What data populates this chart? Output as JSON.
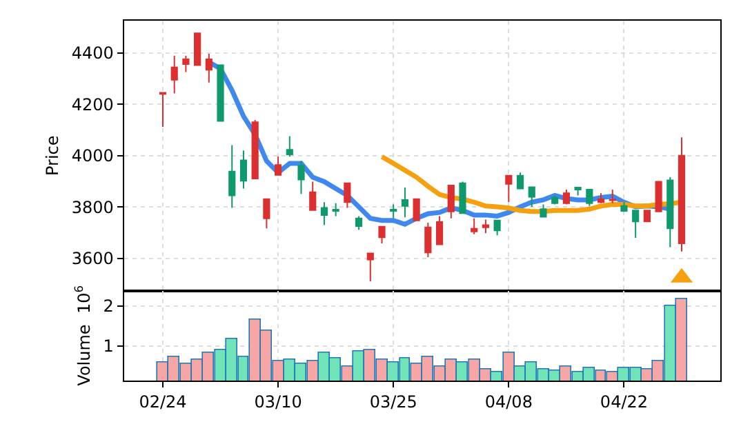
{
  "chart_data": [
    {
      "type": "candlestick",
      "ylabel": "Price",
      "tick_labels": "y",
      "grid": true,
      "categories": [
        null,
        null,
        null,
        null,
        null,
        null,
        null,
        null,
        null,
        null,
        null,
        null,
        null,
        null,
        null,
        null,
        null,
        null,
        null,
        null,
        null,
        null,
        null,
        null,
        null,
        null,
        null,
        null,
        null,
        null,
        null,
        null,
        null,
        null,
        null,
        null,
        null,
        null,
        null,
        null,
        null,
        null,
        null,
        null,
        null,
        null
      ],
      "ohlc": [
        [
          4245,
          4245,
          4112,
          4240
        ],
        [
          4343,
          4388,
          4242,
          4295
        ],
        [
          4375,
          4388,
          4325,
          4356
        ],
        [
          4476,
          4476,
          4352,
          4352
        ],
        [
          4375,
          4396,
          4284,
          4334
        ],
        [
          4135,
          4355,
          4135,
          4352
        ],
        [
          3845,
          4041,
          3797,
          3938
        ],
        [
          3902,
          4020,
          3872,
          3982
        ],
        [
          4130,
          4139,
          3911,
          3911
        ],
        [
          3831,
          3831,
          3717,
          3756
        ],
        [
          3964,
          3996,
          3925,
          3925
        ],
        [
          4005,
          4076,
          3996,
          4023
        ],
        [
          3907,
          3979,
          3851,
          3961
        ],
        [
          3858,
          3899,
          3788,
          3788
        ],
        [
          3769,
          3819,
          3730,
          3797
        ],
        [
          3785,
          3815,
          3765,
          3790
        ],
        [
          3893,
          3893,
          3797,
          3819
        ],
        [
          3726,
          3765,
          3712,
          3756
        ],
        [
          3620,
          3620,
          3511,
          3596
        ],
        [
          3724,
          3724,
          3659,
          3682
        ],
        [
          3785,
          3810,
          3756,
          3790
        ],
        [
          3804,
          3876,
          3760,
          3828
        ],
        [
          3831,
          3831,
          3748,
          3748
        ],
        [
          3721,
          3739,
          3605,
          3623
        ],
        [
          3742,
          3765,
          3655,
          3655
        ],
        [
          3884,
          3884,
          3756,
          3783
        ],
        [
          3776,
          3899,
          3776,
          3893
        ],
        [
          3716,
          3756,
          3694,
          3705
        ],
        [
          3730,
          3751,
          3698,
          3721
        ],
        [
          3709,
          3748,
          3690,
          3748
        ],
        [
          3922,
          3922,
          3819,
          3890
        ],
        [
          3872,
          3934,
          3872,
          3922
        ],
        [
          3840,
          3877,
          3801,
          3877
        ],
        [
          3762,
          3810,
          3762,
          3792
        ],
        [
          3815,
          3845,
          3810,
          3837
        ],
        [
          3854,
          3868,
          3810,
          3815
        ],
        [
          3868,
          3876,
          3845,
          3876
        ],
        [
          3815,
          3868,
          3804,
          3868
        ],
        [
          3831,
          3854,
          3815,
          3819
        ],
        [
          3829,
          3868,
          3815,
          3826
        ],
        [
          3785,
          3819,
          3782,
          3804
        ],
        [
          3744,
          3787,
          3680,
          3787
        ],
        [
          3787,
          3787,
          3744,
          3744
        ],
        [
          3899,
          3899,
          3783,
          3783
        ],
        [
          3717,
          3917,
          3644,
          3904
        ],
        [
          4000,
          4071,
          3627,
          3659
        ]
      ],
      "colors": [
        "#dc2f2f",
        "#dc2f2f",
        "#dc2f2f",
        "#dc2f2f",
        "#dc2f2f",
        "#0f9a6e",
        "#0f9a6e",
        "#0f9a6e",
        "#dc2f2f",
        "#dc2f2f",
        "#dc2f2f",
        "#0f9a6e",
        "#0f9a6e",
        "#dc2f2f",
        "#0f9a6e",
        "#0f9a6e",
        "#dc2f2f",
        "#0f9a6e",
        "#dc2f2f",
        "#dc2f2f",
        "#0f9a6e",
        "#0f9a6e",
        "#dc2f2f",
        "#dc2f2f",
        "#dc2f2f",
        "#dc2f2f",
        "#0f9a6e",
        "#dc2f2f",
        "#dc2f2f",
        "#0f9a6e",
        "#dc2f2f",
        "#0f9a6e",
        "#0f9a6e",
        "#0f9a6e",
        "#0f9a6e",
        "#dc2f2f",
        "#0f9a6e",
        "#0f9a6e",
        "#dc2f2f",
        "#dc2f2f",
        "#0f9a6e",
        "#0f9a6e",
        "#dc2f2f",
        "#dc2f2f",
        "#0f9a6e",
        "#dc2f2f"
      ],
      "ylim": [
        3475,
        4525
      ],
      "yticks": [
        3600,
        3800,
        4000,
        4200,
        4400
      ],
      "series": [
        {
          "type": "line",
          "color": "#3f88f0",
          "values": [
            null,
            null,
            null,
            null,
            4364,
            4338,
            4254,
            4153,
            4082,
            3979,
            3934,
            3970,
            3970,
            3916,
            3899,
            3872,
            3845,
            3801,
            3756,
            3748,
            3748,
            3733,
            3756,
            3774,
            3779,
            3797,
            3787,
            3769,
            3769,
            3765,
            3779,
            3801,
            3819,
            3828,
            3845,
            3833,
            3828,
            3828,
            3837,
            3842,
            3819,
            3801,
            3804,
            3801,
            3792,
            null
          ]
        },
        {
          "type": "line",
          "color": "#f5a00e",
          "values": [
            null,
            null,
            null,
            null,
            null,
            null,
            null,
            null,
            null,
            null,
            null,
            null,
            null,
            null,
            null,
            null,
            null,
            null,
            null,
            3996,
            3970,
            3943,
            3916,
            3881,
            3849,
            3837,
            3831,
            3819,
            3804,
            3801,
            3796,
            3787,
            3783,
            3783,
            3787,
            3787,
            3787,
            3792,
            3804,
            3810,
            3810,
            3804,
            3804,
            3810,
            3813,
            3819
          ]
        },
        {
          "type": "scatter",
          "marker": "triangle",
          "color": "#f5a00e",
          "values": [
            null,
            null,
            null,
            null,
            null,
            null,
            null,
            null,
            null,
            null,
            null,
            null,
            null,
            null,
            null,
            null,
            null,
            null,
            null,
            null,
            null,
            null,
            null,
            null,
            null,
            null,
            null,
            null,
            null,
            null,
            null,
            null,
            null,
            null,
            null,
            null,
            null,
            null,
            null,
            null,
            null,
            null,
            null,
            null,
            null,
            3525
          ]
        }
      ]
    },
    {
      "type": "bar",
      "ylabel": "Volume  10$^{6}$",
      "grid": true,
      "categories": [
        "02/24",
        null,
        null,
        null,
        null,
        null,
        null,
        null,
        null,
        null,
        "03/10",
        null,
        null,
        null,
        null,
        null,
        null,
        null,
        null,
        null,
        "03/25",
        null,
        null,
        null,
        null,
        null,
        null,
        null,
        null,
        null,
        "04/08",
        null,
        null,
        null,
        null,
        null,
        null,
        null,
        null,
        null,
        "04/22",
        null,
        null,
        null,
        null,
        null
      ],
      "values": [
        0.6,
        0.74,
        0.56,
        0.65,
        0.83,
        0.9,
        1.18,
        0.74,
        1.67,
        1.39,
        0.62,
        0.65,
        0.56,
        0.63,
        0.83,
        0.69,
        0.49,
        0.87,
        0.9,
        0.65,
        0.6,
        0.7,
        0.56,
        0.74,
        0.49,
        0.67,
        0.6,
        0.67,
        0.43,
        0.36,
        0.85,
        0.49,
        0.6,
        0.43,
        0.39,
        0.49,
        0.36,
        0.46,
        0.39,
        0.36,
        0.46,
        0.46,
        0.43,
        0.63,
        1.99,
        2.17
      ],
      "colors": [
        "#f7a6a6",
        "#f7a6a6",
        "#f7a6a6",
        "#f7a6a6",
        "#f7a6a6",
        "#70e4b8",
        "#70e4b8",
        "#70e4b8",
        "#f7a6a6",
        "#f7a6a6",
        "#f7a6a6",
        "#70e4b8",
        "#70e4b8",
        "#f7a6a6",
        "#70e4b8",
        "#70e4b8",
        "#f7a6a6",
        "#70e4b8",
        "#f7a6a6",
        "#f7a6a6",
        "#70e4b8",
        "#70e4b8",
        "#f7a6a6",
        "#f7a6a6",
        "#f7a6a6",
        "#f7a6a6",
        "#70e4b8",
        "#f7a6a6",
        "#f7a6a6",
        "#70e4b8",
        "#f7a6a6",
        "#70e4b8",
        "#70e4b8",
        "#70e4b8",
        "#70e4b8",
        "#f7a6a6",
        "#70e4b8",
        "#70e4b8",
        "#f7a6a6",
        "#f7a6a6",
        "#70e4b8",
        "#70e4b8",
        "#f7a6a6",
        "#f7a6a6",
        "#70e4b8",
        "#f7a6a6"
      ],
      "ylim": [
        0.14,
        2.38
      ],
      "yticks": [
        1,
        2
      ]
    }
  ]
}
